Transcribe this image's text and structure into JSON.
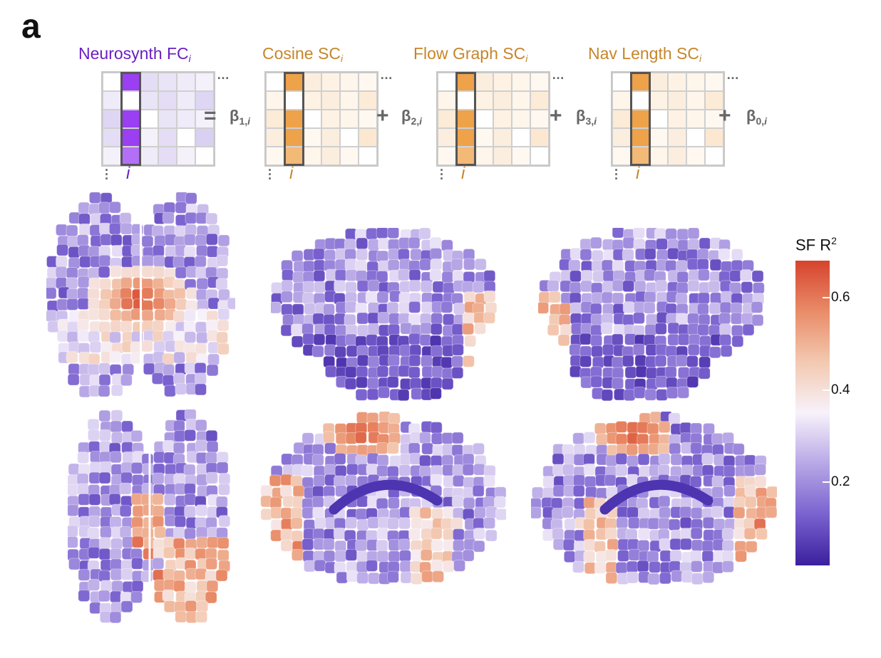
{
  "panel_label": "a",
  "equation": {
    "matrices": [
      {
        "title": "Neurosynth FC",
        "subscript": "i",
        "color": "#6a1fc2",
        "column_color": "#9a3ff2",
        "shade": [
          148,
          120,
          214
        ],
        "col_index_label": "i"
      },
      {
        "title": "Cosine SC",
        "subscript": "i",
        "color": "#c6862a",
        "column_color": "#eea24a",
        "shade": [
          245,
          188,
          122
        ],
        "col_index_label": "i"
      },
      {
        "title": "Flow Graph SC",
        "subscript": "i",
        "color": "#c6862a",
        "column_color": "#eea24a",
        "shade": [
          245,
          188,
          122
        ],
        "col_index_label": "i"
      },
      {
        "title": "Nav Length SC",
        "subscript": "i",
        "color": "#c6862a",
        "column_color": "#eea24a",
        "shade": [
          245,
          188,
          122
        ],
        "col_index_label": "i"
      }
    ],
    "equals_sign": "=",
    "plus_sign": "+",
    "betas": [
      {
        "symbol": "β",
        "sub": "1,",
        "sub_i": "i"
      },
      {
        "symbol": "β",
        "sub": "2,",
        "sub_i": "i"
      },
      {
        "symbol": "β",
        "sub": "3,",
        "sub_i": "i"
      },
      {
        "symbol": "β",
        "sub": "0,",
        "sub_i": "i"
      }
    ]
  },
  "colorbar": {
    "title": "SF R",
    "title_sup": "2",
    "ticks": [
      "0.6",
      "0.4",
      "0.2"
    ],
    "tick_values": [
      0.6,
      0.4,
      0.2
    ],
    "range": [
      0.02,
      0.68
    ],
    "colors": [
      "#3b1f9e",
      "#7a62cf",
      "#b8a7e6",
      "#f7f2fb",
      "#f3c9b1",
      "#e98c68",
      "#d6432d"
    ]
  },
  "brain_views": [
    {
      "view": "dorsal"
    },
    {
      "view": "lateral-left"
    },
    {
      "view": "lateral-right"
    },
    {
      "view": "ventral"
    },
    {
      "view": "medial-left"
    },
    {
      "view": "medial-right"
    }
  ]
}
